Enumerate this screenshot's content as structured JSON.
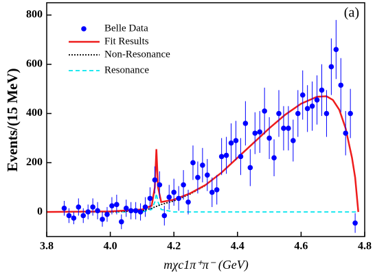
{
  "chart_data": {
    "type": "scatter",
    "x_label": "mχc1π⁺π⁻ (GeV)",
    "y_label": "Events/(15 MeV)",
    "annotation": "(a)",
    "xlim": [
      3.8,
      4.8
    ],
    "ylim": [
      -100,
      850
    ],
    "xticks": [
      3.8,
      {
        "value": 4,
        "label": "4.0"
      },
      4.2,
      4.4,
      4.6,
      4.8
    ],
    "yticks": [
      0,
      200,
      400,
      600,
      800
    ],
    "legend": "upper left",
    "series": [
      {
        "name": "Belle Data",
        "type": "scatter",
        "color": "#0000ff",
        "x": [
          3.855,
          3.87,
          3.885,
          3.9,
          3.915,
          3.93,
          3.945,
          3.96,
          3.975,
          3.99,
          4.005,
          4.02,
          4.035,
          4.05,
          4.065,
          4.08,
          4.095,
          4.11,
          4.125,
          4.14,
          4.155,
          4.17,
          4.185,
          4.2,
          4.215,
          4.23,
          4.245,
          4.26,
          4.275,
          4.29,
          4.305,
          4.32,
          4.335,
          4.35,
          4.365,
          4.38,
          4.395,
          4.41,
          4.425,
          4.44,
          4.455,
          4.47,
          4.485,
          4.5,
          4.515,
          4.53,
          4.545,
          4.56,
          4.575,
          4.59,
          4.605,
          4.62,
          4.635,
          4.65,
          4.665,
          4.68,
          4.695,
          4.71,
          4.725,
          4.74,
          4.755,
          4.77
        ],
        "values": [
          15,
          -15,
          -25,
          20,
          -15,
          0,
          20,
          5,
          -30,
          -10,
          25,
          30,
          -40,
          15,
          5,
          5,
          0,
          20,
          55,
          130,
          110,
          -15,
          60,
          80,
          55,
          110,
          40,
          200,
          140,
          190,
          150,
          80,
          90,
          225,
          230,
          280,
          290,
          225,
          360,
          180,
          320,
          325,
          410,
          300,
          220,
          400,
          340,
          340,
          290,
          400,
          475,
          420,
          430,
          455,
          495,
          400,
          590,
          660,
          515,
          320,
          400,
          -45
        ],
        "errors": [
          30,
          30,
          25,
          35,
          30,
          30,
          35,
          35,
          30,
          30,
          35,
          40,
          30,
          35,
          35,
          35,
          35,
          40,
          45,
          55,
          55,
          40,
          50,
          55,
          50,
          60,
          50,
          70,
          65,
          70,
          65,
          60,
          60,
          75,
          75,
          80,
          80,
          75,
          90,
          75,
          85,
          85,
          95,
          85,
          75,
          95,
          90,
          90,
          85,
          95,
          100,
          95,
          100,
          100,
          105,
          95,
          115,
          120,
          110,
          90,
          100,
          40
        ]
      },
      {
        "name": "Fit Results",
        "type": "line",
        "color": "#ee1c1c",
        "dash": "",
        "x": [
          3.8,
          4.0,
          4.1,
          4.13,
          4.14,
          4.145,
          4.15,
          4.16,
          4.2,
          4.25,
          4.3,
          4.35,
          4.4,
          4.45,
          4.5,
          4.55,
          4.6,
          4.65,
          4.68,
          4.7,
          4.72,
          4.74,
          4.76,
          4.77,
          4.78
        ],
        "values": [
          0,
          2,
          10,
          25,
          100,
          255,
          100,
          40,
          50,
          75,
          110,
          160,
          220,
          280,
          340,
          395,
          440,
          468,
          470,
          455,
          415,
          340,
          220,
          140,
          0
        ]
      },
      {
        "name": "Non-Resonance",
        "type": "line",
        "color": "#000000",
        "dash": "2 2",
        "x": [
          3.8,
          4.0,
          4.1,
          4.13,
          4.16,
          4.2,
          4.25,
          4.3
        ],
        "values": [
          0,
          0,
          5,
          15,
          30,
          45,
          72,
          108
        ]
      },
      {
        "name": "Resonance",
        "type": "line",
        "color": "#00e5ee",
        "dash": "6 4",
        "x": [
          3.8,
          4.1,
          4.13,
          4.14,
          4.145,
          4.15,
          4.16,
          4.2,
          4.78
        ],
        "values": [
          0,
          0,
          10,
          40,
          75,
          40,
          10,
          0,
          0
        ]
      }
    ]
  }
}
